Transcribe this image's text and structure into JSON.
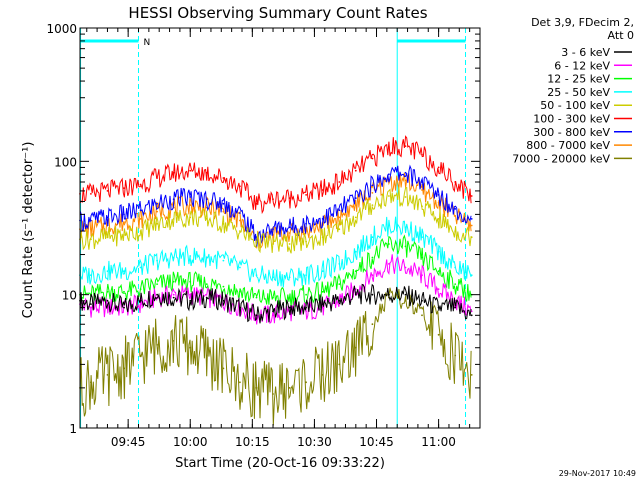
{
  "chart_data": {
    "type": "line",
    "title": "HESSI Observing Summary Count Rates",
    "xlabel": "Start Time (20-Oct-16 09:33:22)",
    "ylabel": "Count Rate (s⁻¹ detector⁻¹)",
    "y_scale": "log",
    "ylim": [
      1,
      1000
    ],
    "x_range": [
      "09:33:22",
      "11:10:00"
    ],
    "y_ticks": [
      {
        "value": 1,
        "label": "1"
      },
      {
        "value": 10,
        "label": "10"
      },
      {
        "value": 100,
        "label": "100"
      },
      {
        "value": 1000,
        "label": "1000"
      }
    ],
    "x_ticks": [
      {
        "value": "09:45",
        "label": "09:45"
      },
      {
        "value": "10:00",
        "label": "10:00"
      },
      {
        "value": "10:15",
        "label": "10:15"
      },
      {
        "value": "10:30",
        "label": "10:30"
      },
      {
        "value": "10:45",
        "label": "10:45"
      },
      {
        "value": "11:00",
        "label": "11:00"
      }
    ],
    "x_minor_tick_interval_min": 2.5,
    "legend_header": [
      "Det 3,9, FDecim 2,",
      "Att 0"
    ],
    "legend_position": "right, outside plot",
    "series": [
      {
        "name": "3 - 6 keV",
        "color": "#000000",
        "points": [
          [
            "09:33:22",
            9
          ],
          [
            "09:36",
            8.5
          ],
          [
            "09:40",
            9
          ],
          [
            "09:44",
            8
          ],
          [
            "09:48",
            9
          ],
          [
            "09:52",
            10
          ],
          [
            "09:56",
            9.5
          ],
          [
            "10:00",
            9
          ],
          [
            "10:04",
            9.5
          ],
          [
            "10:08",
            9
          ],
          [
            "10:12",
            8
          ],
          [
            "10:16",
            7
          ],
          [
            "10:20",
            7.5
          ],
          [
            "10:24",
            8
          ],
          [
            "10:28",
            8
          ],
          [
            "10:32",
            8.5
          ],
          [
            "10:36",
            9
          ],
          [
            "10:40",
            10
          ],
          [
            "10:44",
            10
          ],
          [
            "10:48",
            10
          ],
          [
            "10:52",
            10
          ],
          [
            "10:56",
            9
          ],
          [
            "11:00",
            8
          ],
          [
            "11:04",
            8
          ],
          [
            "11:08",
            7
          ]
        ]
      },
      {
        "name": "6 - 12 keV",
        "color": "#ff00ff",
        "points": [
          [
            "09:33:22",
            8.5
          ],
          [
            "09:36",
            8
          ],
          [
            "09:40",
            8
          ],
          [
            "09:44",
            8
          ],
          [
            "09:48",
            8.5
          ],
          [
            "09:52",
            9.5
          ],
          [
            "09:56",
            10
          ],
          [
            "10:00",
            10
          ],
          [
            "10:04",
            9.5
          ],
          [
            "10:08",
            9
          ],
          [
            "10:12",
            8
          ],
          [
            "10:16",
            7
          ],
          [
            "10:20",
            7
          ],
          [
            "10:24",
            7.5
          ],
          [
            "10:28",
            7.5
          ],
          [
            "10:32",
            8
          ],
          [
            "10:36",
            9
          ],
          [
            "10:40",
            11
          ],
          [
            "10:44",
            14
          ],
          [
            "10:48",
            17
          ],
          [
            "10:52",
            16
          ],
          [
            "10:56",
            14
          ],
          [
            "11:00",
            11
          ],
          [
            "11:04",
            9
          ],
          [
            "11:08",
            7.5
          ]
        ]
      },
      {
        "name": "12 - 25 keV",
        "color": "#00ff00",
        "points": [
          [
            "09:33:22",
            10
          ],
          [
            "09:36",
            10
          ],
          [
            "09:40",
            10.5
          ],
          [
            "09:44",
            10.5
          ],
          [
            "09:48",
            11
          ],
          [
            "09:52",
            12
          ],
          [
            "09:56",
            12.5
          ],
          [
            "10:00",
            12.5
          ],
          [
            "10:04",
            12
          ],
          [
            "10:08",
            11.5
          ],
          [
            "10:12",
            10.5
          ],
          [
            "10:16",
            9.5
          ],
          [
            "10:20",
            9.5
          ],
          [
            "10:24",
            9.5
          ],
          [
            "10:28",
            10
          ],
          [
            "10:32",
            10.5
          ],
          [
            "10:36",
            12
          ],
          [
            "10:40",
            15
          ],
          [
            "10:44",
            19
          ],
          [
            "10:48",
            24
          ],
          [
            "10:52",
            23
          ],
          [
            "10:56",
            19
          ],
          [
            "11:00",
            15
          ],
          [
            "11:04",
            12
          ],
          [
            "11:08",
            10
          ]
        ]
      },
      {
        "name": "25 - 50 keV",
        "color": "#00ffff",
        "points": [
          [
            "09:33:22",
            14
          ],
          [
            "09:36",
            14
          ],
          [
            "09:40",
            15
          ],
          [
            "09:44",
            15
          ],
          [
            "09:48",
            16
          ],
          [
            "09:52",
            18
          ],
          [
            "09:56",
            19
          ],
          [
            "10:00",
            19.5
          ],
          [
            "10:04",
            19
          ],
          [
            "10:08",
            18
          ],
          [
            "10:12",
            16
          ],
          [
            "10:16",
            14
          ],
          [
            "10:20",
            13.5
          ],
          [
            "10:24",
            13.5
          ],
          [
            "10:28",
            14
          ],
          [
            "10:32",
            15
          ],
          [
            "10:36",
            17
          ],
          [
            "10:40",
            21
          ],
          [
            "10:44",
            27
          ],
          [
            "10:48",
            33
          ],
          [
            "10:52",
            32
          ],
          [
            "10:56",
            27
          ],
          [
            "11:00",
            21
          ],
          [
            "11:04",
            16
          ],
          [
            "11:08",
            14
          ]
        ]
      },
      {
        "name": "50 - 100 keV",
        "color": "#cccc00",
        "points": [
          [
            "09:33:22",
            26
          ],
          [
            "09:36",
            26
          ],
          [
            "09:40",
            27
          ],
          [
            "09:44",
            28
          ],
          [
            "09:48",
            30
          ],
          [
            "09:52",
            34
          ],
          [
            "09:56",
            37
          ],
          [
            "10:00",
            38
          ],
          [
            "10:04",
            37
          ],
          [
            "10:08",
            34
          ],
          [
            "10:12",
            30
          ],
          [
            "10:16",
            25
          ],
          [
            "10:20",
            24
          ],
          [
            "10:24",
            24
          ],
          [
            "10:28",
            25
          ],
          [
            "10:32",
            27
          ],
          [
            "10:36",
            31
          ],
          [
            "10:40",
            38
          ],
          [
            "10:44",
            47
          ],
          [
            "10:48",
            55
          ],
          [
            "10:52",
            54
          ],
          [
            "10:56",
            46
          ],
          [
            "11:00",
            37
          ],
          [
            "11:04",
            30
          ],
          [
            "11:08",
            27
          ]
        ]
      },
      {
        "name": "100 - 300 keV",
        "color": "#ff0000",
        "points": [
          [
            "09:33:22",
            57
          ],
          [
            "09:36",
            57
          ],
          [
            "09:40",
            60
          ],
          [
            "09:44",
            63
          ],
          [
            "09:48",
            67
          ],
          [
            "09:52",
            75
          ],
          [
            "09:56",
            82
          ],
          [
            "10:00",
            85
          ],
          [
            "10:04",
            82
          ],
          [
            "10:08",
            75
          ],
          [
            "10:12",
            65
          ],
          [
            "10:16",
            48
          ],
          [
            "10:20",
            52
          ],
          [
            "10:24",
            53
          ],
          [
            "10:28",
            56
          ],
          [
            "10:32",
            61
          ],
          [
            "10:36",
            70
          ],
          [
            "10:40",
            85
          ],
          [
            "10:44",
            105
          ],
          [
            "10:48",
            128
          ],
          [
            "10:52",
            130
          ],
          [
            "10:56",
            112
          ],
          [
            "11:00",
            90
          ],
          [
            "11:04",
            70
          ],
          [
            "11:08",
            55
          ]
        ]
      },
      {
        "name": "300 - 800 keV",
        "color": "#0000ff",
        "points": [
          [
            "09:33:22",
            36
          ],
          [
            "09:36",
            36
          ],
          [
            "09:40",
            38
          ],
          [
            "09:44",
            40
          ],
          [
            "09:48",
            43
          ],
          [
            "09:52",
            48
          ],
          [
            "09:56",
            52
          ],
          [
            "10:00",
            54
          ],
          [
            "10:04",
            52
          ],
          [
            "10:08",
            48
          ],
          [
            "10:12",
            41
          ],
          [
            "10:16",
            27
          ],
          [
            "10:20",
            31
          ],
          [
            "10:24",
            32
          ],
          [
            "10:28",
            34
          ],
          [
            "10:32",
            37
          ],
          [
            "10:36",
            43
          ],
          [
            "10:40",
            53
          ],
          [
            "10:44",
            66
          ],
          [
            "10:48",
            80
          ],
          [
            "10:52",
            82
          ],
          [
            "10:56",
            70
          ],
          [
            "11:00",
            56
          ],
          [
            "11:04",
            44
          ],
          [
            "11:08",
            37
          ]
        ]
      },
      {
        "name": "800 - 7000 keV",
        "color": "#ff8800",
        "points": [
          [
            "09:33:22",
            31
          ],
          [
            "09:36",
            31
          ],
          [
            "09:40",
            33
          ],
          [
            "09:44",
            35
          ],
          [
            "09:48",
            37
          ],
          [
            "09:52",
            42
          ],
          [
            "09:56",
            45
          ],
          [
            "10:00",
            47
          ],
          [
            "10:04",
            45
          ],
          [
            "10:08",
            42
          ],
          [
            "10:12",
            36
          ],
          [
            "10:16",
            25
          ],
          [
            "10:20",
            28
          ],
          [
            "10:24",
            29
          ],
          [
            "10:28",
            30
          ],
          [
            "10:32",
            33
          ],
          [
            "10:36",
            38
          ],
          [
            "10:40",
            47
          ],
          [
            "10:44",
            58
          ],
          [
            "10:48",
            70
          ],
          [
            "10:52",
            72
          ],
          [
            "10:56",
            61
          ],
          [
            "11:00",
            49
          ],
          [
            "11:04",
            39
          ],
          [
            "11:08",
            33
          ]
        ]
      },
      {
        "name": "7000 - 20000 keV",
        "color": "#808000",
        "points": [
          [
            "09:33:22",
            2
          ],
          [
            "09:36",
            2.2
          ],
          [
            "09:40",
            2.5
          ],
          [
            "09:44",
            2.8
          ],
          [
            "09:48",
            3.5
          ],
          [
            "09:52",
            4.2
          ],
          [
            "09:56",
            4.5
          ],
          [
            "10:00",
            4
          ],
          [
            "10:04",
            3.5
          ],
          [
            "10:08",
            2.8
          ],
          [
            "10:12",
            2.2
          ],
          [
            "10:16",
            2
          ],
          [
            "10:20",
            1.8
          ],
          [
            "10:24",
            2
          ],
          [
            "10:28",
            2.2
          ],
          [
            "10:32",
            2.5
          ],
          [
            "10:36",
            3
          ],
          [
            "10:40",
            4
          ],
          [
            "10:44",
            6
          ],
          [
            "10:48",
            9.5
          ],
          [
            "10:52",
            9
          ],
          [
            "10:56",
            7
          ],
          [
            "11:00",
            5
          ],
          [
            "11:04",
            3.5
          ],
          [
            "11:08",
            2.5
          ]
        ]
      }
    ],
    "attenuator_bars": [
      {
        "start": "09:33:22",
        "end": "09:47:30",
        "label": "N",
        "color": "#00ffff"
      },
      {
        "start": "10:50:00",
        "end": "11:06:30",
        "label": "",
        "color": "#00ffff"
      }
    ],
    "vertical_lines": [
      {
        "time": "09:33:30",
        "style": "solid"
      },
      {
        "time": "09:47:30",
        "style": "dashed"
      },
      {
        "time": "10:50:00",
        "style": "solid"
      },
      {
        "time": "11:06:30",
        "style": "dashed"
      }
    ],
    "timestamp": "29-Nov-2017 10:49"
  }
}
